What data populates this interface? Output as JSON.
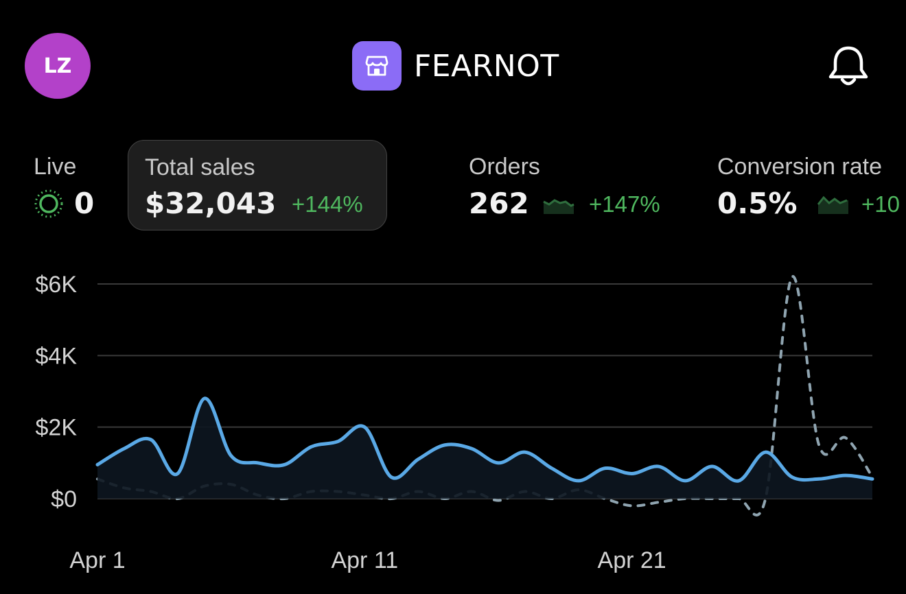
{
  "header": {
    "avatar_initials": "LZ",
    "store_icon": "store-icon",
    "store_name": "FEARNOT",
    "notification_icon": "bell-icon"
  },
  "metrics": {
    "live": {
      "label": "Live",
      "value": "0",
      "icon": "live-pulse-icon"
    },
    "total_sales": {
      "label": "Total sales",
      "value": "$32,043",
      "change": "+144%"
    },
    "orders": {
      "label": "Orders",
      "value": "262",
      "change": "+147%"
    },
    "conversion_rate": {
      "label": "Conversion rate",
      "value": "0.5%",
      "change": "+10"
    }
  },
  "colors": {
    "accent_purple": "#8b6cf6",
    "avatar": "#b341c9",
    "positive_change": "#4fb85f",
    "current_series": "#5aa9e6",
    "comparison_series": "#8fa4b0"
  },
  "chart_data": {
    "type": "line",
    "ylim": [
      0,
      6000
    ],
    "y_ticks": [
      "$6K",
      "$4K",
      "$2K",
      "$0"
    ],
    "x_ticks": [
      "Apr 1",
      "Apr 11",
      "Apr 21"
    ],
    "grid": true,
    "series": [
      {
        "style": "solid",
        "values": [
          950,
          1400,
          1650,
          700,
          2800,
          1200,
          1000,
          950,
          1450,
          1600,
          2000,
          600,
          1100,
          1500,
          1400,
          1000,
          1300,
          850,
          500,
          850,
          700,
          900,
          500,
          900,
          500,
          1300,
          600,
          550,
          650,
          550
        ]
      },
      {
        "style": "dashed",
        "values": [
          550,
          300,
          200,
          0,
          350,
          400,
          100,
          0,
          200,
          200,
          100,
          0,
          200,
          0,
          200,
          -50,
          200,
          0,
          250,
          0,
          -200,
          -100,
          0,
          0,
          0,
          0,
          6200,
          1500,
          1700,
          600
        ]
      }
    ]
  }
}
